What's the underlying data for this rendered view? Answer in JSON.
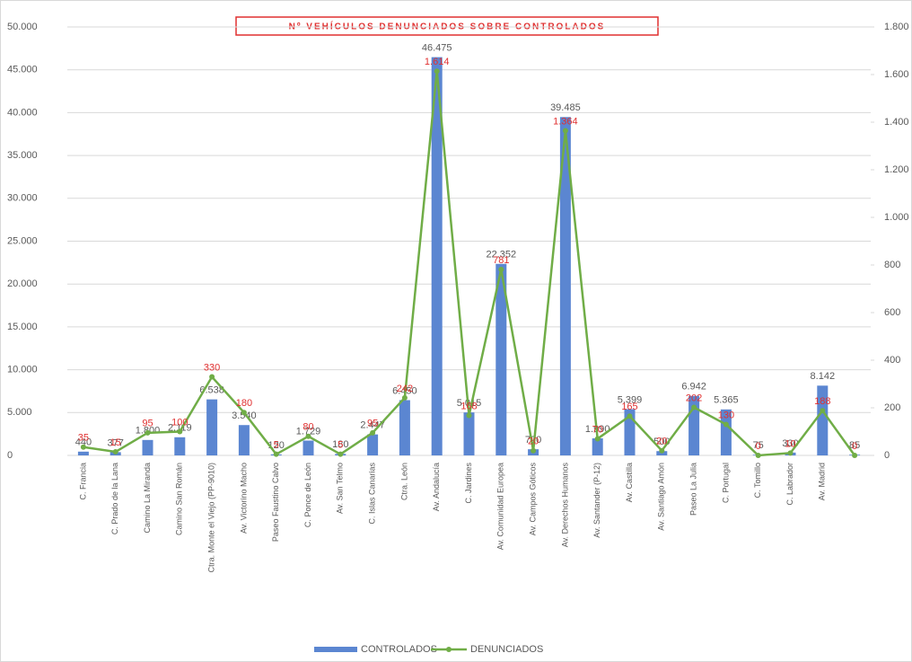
{
  "chart_data": {
    "type": "bar_line",
    "title": "Nº VEHÍCULOS DENUNCIADOS SOBRE CONTROLADOS",
    "categories": [
      "C. Francia",
      "C. Prado de la Lana",
      "Camino La Miranda",
      "Camino San Román",
      "Ctra. Monte el Viejo (PP-9010)",
      "Av. Victorino Macho",
      "Paseo Faustino Calvo",
      "C. Ponce de León",
      "Av. San Telmo",
      "C. Islas Canarias",
      "Ctra. León",
      "Av. Andalucía",
      "C. Jardines",
      "Av. Comunidad Europea",
      "Av. Campos Góticos",
      "Av. Derechos Humanos",
      "Av. Santander (P-12)",
      "Av. Castilla",
      "Av. Santiago Amón",
      "Paseo La Julia",
      "C. Portugal",
      "C. Tomillo",
      "C. Labrador",
      "Av. Madrid",
      null
    ],
    "series": [
      {
        "name": "CONTROLADOS",
        "color": "#5b86d1",
        "axis": "y",
        "values": [
          440,
          377,
          1800,
          2119,
          6538,
          3540,
          120,
          1729,
          180,
          2447,
          6450,
          46475,
          5015,
          22352,
          720,
          39485,
          1990,
          5399,
          500,
          6942,
          5365,
          75,
          330,
          8142,
          85
        ],
        "value_labels": [
          "440",
          "377",
          "1.800",
          "2.119",
          "6.538",
          "3.540",
          "120",
          "1.729",
          "180",
          "2.447",
          "6.450",
          "46.475",
          "5.015",
          "22.352",
          "720",
          "39.485",
          "1.990",
          "5.399",
          "500",
          "6.942",
          "5.365",
          "75",
          "330",
          "8.142",
          "85"
        ]
      },
      {
        "name": "DENUNCIADOS",
        "color": "#70ad47",
        "axis": "y2",
        "label_color": "#e03030",
        "values": [
          35,
          15,
          95,
          100,
          330,
          180,
          5,
          80,
          5,
          95,
          242,
          1614,
          168,
          781,
          20,
          1364,
          70,
          165,
          20,
          202,
          130,
          0,
          10,
          188,
          0
        ],
        "value_labels": [
          "35",
          "15",
          "95",
          "100",
          "330",
          "180",
          "5",
          "80",
          "5",
          "95",
          "242",
          "1.614",
          "168",
          "781",
          "20",
          "1.364",
          "70",
          "165",
          "20",
          "202",
          "130",
          "0",
          "10",
          "188",
          "0"
        ]
      }
    ],
    "ylim": [
      0,
      50000
    ],
    "yticks": [
      0,
      {
        "value": 5000,
        "label": "5.000"
      },
      {
        "value": 10000,
        "label": "10.000"
      },
      {
        "value": 15000,
        "label": "15.000"
      },
      {
        "value": 20000,
        "label": "20.000"
      },
      {
        "value": 25000,
        "label": "25.000"
      },
      {
        "value": 30000,
        "label": "30.000"
      },
      {
        "value": 35000,
        "label": "35.000"
      },
      {
        "value": 40000,
        "label": "40.000"
      },
      {
        "value": 45000,
        "label": "45.000"
      },
      {
        "value": 50000,
        "label": "50.000"
      }
    ],
    "y2lim": [
      0,
      1800
    ],
    "y2ticks": [
      0,
      200,
      400,
      600,
      800,
      {
        "value": 1000,
        "label": "1.000"
      },
      {
        "value": 1200,
        "label": "1.200"
      },
      {
        "value": 1400,
        "label": "1.400"
      },
      {
        "value": 1600,
        "label": "1.600"
      },
      {
        "value": 1800,
        "label": "1.800"
      }
    ],
    "grid": true,
    "legend": "bottom"
  }
}
